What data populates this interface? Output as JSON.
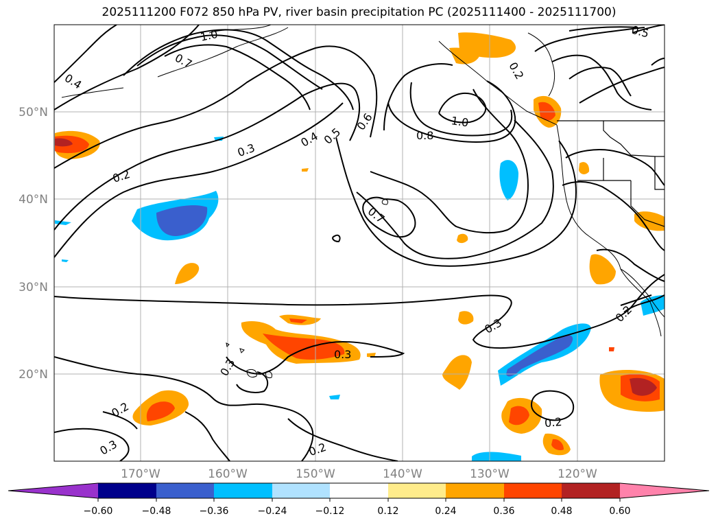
{
  "title": "2025111200 F072 850 hPa PV, river basin precipitation PC (2025111400 - 2025111700)",
  "map": {
    "lon_labels": [
      "170°W",
      "160°W",
      "150°W",
      "140°W",
      "130°W",
      "120°W"
    ],
    "lat_labels": [
      "50°N",
      "40°N",
      "30°N",
      "20°N"
    ],
    "contour_labels": [
      {
        "text": "1.0"
      },
      {
        "text": "0.7"
      },
      {
        "text": "0.4"
      },
      {
        "text": "0.3"
      },
      {
        "text": "0.2"
      },
      {
        "text": "0.4"
      },
      {
        "text": "0.5"
      },
      {
        "text": "0.6"
      },
      {
        "text": "1.0"
      },
      {
        "text": "0.8"
      },
      {
        "text": "0.7"
      },
      {
        "text": "0.5"
      },
      {
        "text": "0.3"
      },
      {
        "text": "0.3"
      },
      {
        "text": "0.2"
      },
      {
        "text": "0.3"
      },
      {
        "text": "0.2"
      },
      {
        "text": "0.2"
      },
      {
        "text": "0.3"
      },
      {
        "text": "0.2"
      },
      {
        "text": "0.2"
      }
    ]
  },
  "colorbar": {
    "colors": [
      "#9932cc",
      "#00008b",
      "#3a5fcd",
      "#00bfff",
      "#b0e2ff",
      "#ffffff",
      "#ffec8b",
      "#ffa500",
      "#ff4500",
      "#b22222",
      "#ff82ab"
    ],
    "tick_labels": [
      "−0.60",
      "−0.48",
      "−0.36",
      "−0.24",
      "−0.12",
      "0.12",
      "0.24",
      "0.36",
      "0.48",
      "0.60"
    ]
  }
}
